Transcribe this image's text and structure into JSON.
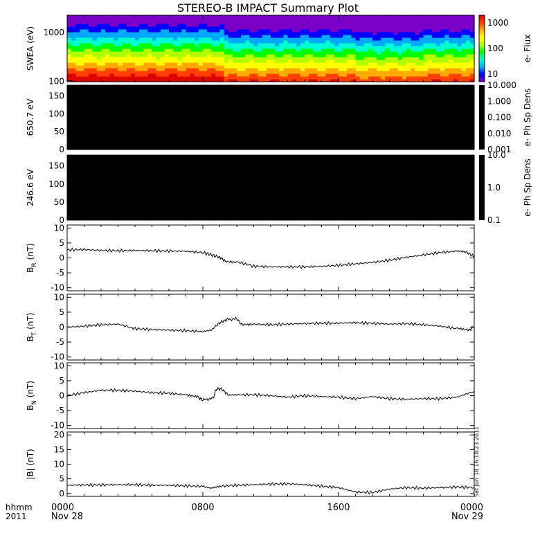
{
  "title": "STEREO-B IMPACT Summary Plot",
  "stamp": "Sat Jun 18 16:18:23 2011",
  "corner": {
    "format_label": "hhmm",
    "year": "2011"
  },
  "time_axis": {
    "labels": [
      {
        "hour": 0,
        "time": "0000",
        "date": "Nov 28"
      },
      {
        "hour": 8,
        "time": "0800",
        "date": ""
      },
      {
        "hour": 16,
        "time": "1600",
        "date": ""
      },
      {
        "hour": 24,
        "time": "0000",
        "date": "Nov 29"
      }
    ]
  },
  "colors": {
    "trace": "#000000",
    "empty_panel": "#000000",
    "spectrogram_scale": [
      "#7a00c8",
      "#0000ff",
      "#00aaff",
      "#00ffd0",
      "#00ff00",
      "#b0ff00",
      "#ffff00",
      "#ffaa00",
      "#ff4000",
      "#e00000"
    ]
  },
  "chart_data": [
    {
      "type": "heatmap",
      "id": "swea",
      "ylabel": "SWEA (eV)",
      "y_scale": "log",
      "ylim": [
        95,
        2200
      ],
      "yticks": [
        "100",
        "1000"
      ],
      "colorbar_label": "e- Flux",
      "colorbar_ticks": [
        "10",
        "100",
        "1000"
      ],
      "colorbar_scale": "log",
      "colorbar_range": [
        5,
        2000
      ],
      "description_bands": [
        {
          "x_range": [
            0,
            9.2
          ],
          "energy_ev": [
            95,
            140
          ],
          "level": "high (~1000-2000)"
        },
        {
          "x_range": [
            9.2,
            24
          ],
          "energy_ev": [
            95,
            140
          ],
          "level": "~500-1000"
        },
        {
          "x_range": [
            0,
            24
          ],
          "energy_ev": [
            150,
            500
          ],
          "level": "~100-300"
        },
        {
          "x_range": [
            0,
            24
          ],
          "energy_ev": [
            600,
            1200
          ],
          "level": "~20-60"
        },
        {
          "x_range": [
            0,
            24
          ],
          "energy_ev": [
            1300,
            2200
          ],
          "level": "~5-10"
        }
      ]
    },
    {
      "type": "heatmap",
      "id": "pad650",
      "ylabel": "650.7 eV",
      "ylim": [
        0,
        180
      ],
      "yticks": [
        "0",
        "50",
        "100",
        "150"
      ],
      "colorbar_label": "e- Ph Sp Dens",
      "colorbar_ticks": [
        "0.001",
        "0.010",
        "0.100",
        "1.000",
        "10.000"
      ],
      "colorbar_scale": "log",
      "empty": true
    },
    {
      "type": "heatmap",
      "id": "pad246",
      "ylabel": "246.6 eV",
      "ylim": [
        0,
        180
      ],
      "yticks": [
        "0",
        "50",
        "100",
        "150"
      ],
      "colorbar_label": "e- Ph Sp Dens",
      "colorbar_ticks": [
        "0.1",
        "1.0",
        "10.0"
      ],
      "colorbar_scale": "log",
      "empty": true
    },
    {
      "type": "line",
      "id": "br",
      "ylabel": "B",
      "ylabel_sub": "R",
      "ylabel_unit": "(nT)",
      "ylim": [
        -11,
        11
      ],
      "yticks": [
        "-10",
        "-5",
        "0",
        "5",
        "10"
      ],
      "xlim": [
        0,
        24
      ],
      "x": [
        0,
        1,
        2,
        3,
        4,
        5,
        6,
        7,
        8,
        8.5,
        9,
        9.3,
        10,
        11,
        12,
        13,
        14,
        15,
        16,
        17,
        18,
        19,
        20,
        21,
        22,
        23,
        23.5,
        24
      ],
      "y": [
        2.7,
        2.8,
        2.5,
        2.4,
        2.5,
        2.4,
        2.3,
        2.2,
        1.8,
        1.0,
        0.2,
        -1.0,
        -1.3,
        -2.8,
        -3.0,
        -3.0,
        -3.0,
        -2.8,
        -2.5,
        -2.0,
        -1.5,
        -0.8,
        0.2,
        1.0,
        1.8,
        2.3,
        2.0,
        0.5
      ]
    },
    {
      "type": "line",
      "id": "bt",
      "ylabel": "B",
      "ylabel_sub": "T",
      "ylabel_unit": "(nT)",
      "ylim": [
        -11,
        11
      ],
      "yticks": [
        "-10",
        "-5",
        "0",
        "5",
        "10"
      ],
      "xlim": [
        0,
        24
      ],
      "x": [
        0,
        1,
        2,
        3,
        4,
        5,
        6,
        7,
        8,
        8.5,
        9,
        9.4,
        10,
        10.3,
        11,
        12,
        13,
        14,
        15,
        16,
        17,
        18,
        19,
        20,
        21,
        22,
        23,
        23.7,
        24
      ],
      "y": [
        0.0,
        0.3,
        0.8,
        1.0,
        -0.5,
        -0.8,
        -1.0,
        -1.2,
        -1.5,
        -1.0,
        1.5,
        2.5,
        2.8,
        0.8,
        1.0,
        0.8,
        1.0,
        1.2,
        1.3,
        1.3,
        1.5,
        1.3,
        1.0,
        1.2,
        0.8,
        0.3,
        -0.5,
        -1.0,
        0.3
      ]
    },
    {
      "type": "line",
      "id": "bn",
      "ylabel": "B",
      "ylabel_sub": "N",
      "ylabel_unit": "(nT)",
      "ylim": [
        -11,
        11
      ],
      "yticks": [
        "-10",
        "-5",
        "0",
        "5",
        "10"
      ],
      "xlim": [
        0,
        24
      ],
      "x": [
        0,
        1,
        2,
        3,
        4,
        5,
        6,
        7,
        7.7,
        8,
        8.6,
        8.8,
        9.1,
        9.5,
        10,
        11,
        12,
        13,
        14,
        15,
        16,
        17,
        18,
        19,
        20,
        21,
        22,
        23,
        24
      ],
      "y": [
        0.0,
        1.0,
        1.8,
        1.8,
        1.5,
        1.0,
        0.8,
        0.3,
        -0.5,
        -1.5,
        -0.8,
        2.2,
        2.3,
        0.2,
        0.3,
        0.3,
        0.0,
        -0.5,
        0.0,
        -0.3,
        -0.5,
        -1.0,
        -0.3,
        -1.0,
        -1.2,
        -1.0,
        -1.0,
        -0.5,
        1.5
      ]
    },
    {
      "type": "line",
      "id": "bmag",
      "ylabel": "|B| (nT)",
      "ylim": [
        -1,
        21
      ],
      "yticks": [
        "0",
        "5",
        "10",
        "15",
        "20"
      ],
      "xlim": [
        0,
        24
      ],
      "x": [
        0,
        1,
        2,
        3,
        4,
        5,
        6,
        7,
        8,
        8.5,
        9,
        10,
        11,
        12,
        13,
        14,
        15,
        16,
        17,
        18,
        19,
        20,
        21,
        22,
        23,
        24
      ],
      "y": [
        2.8,
        2.9,
        2.9,
        3.0,
        3.0,
        2.8,
        2.8,
        2.6,
        2.4,
        1.8,
        2.5,
        2.8,
        3.0,
        3.2,
        3.3,
        3.0,
        2.5,
        2.0,
        0.5,
        0.3,
        1.5,
        2.0,
        1.8,
        2.0,
        2.2,
        2.0
      ]
    }
  ]
}
